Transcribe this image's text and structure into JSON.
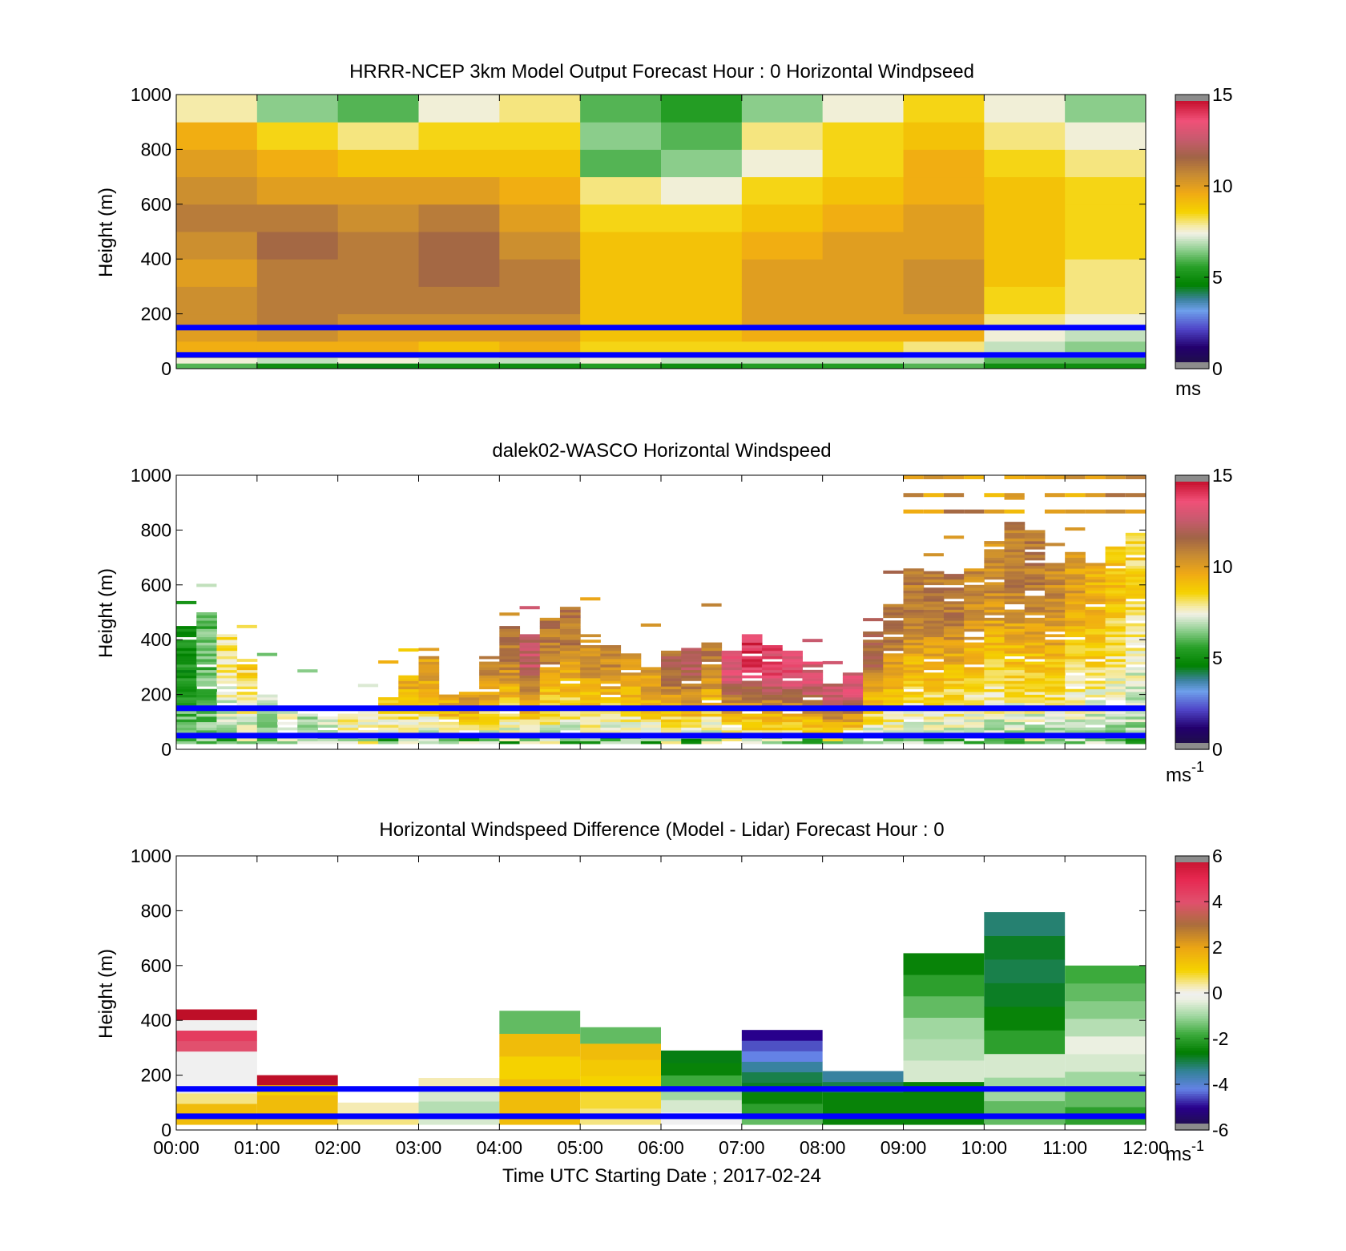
{
  "panels": [
    {
      "id": "model",
      "title": "HRRR-NCEP 3km Model Output   Forecast Hour : 0 Horizontal Windpseed",
      "ylabel": "Height (m)",
      "colorbar_unit": "ms",
      "colorbar_unit_sup": ""
    },
    {
      "id": "lidar",
      "title": "dalek02-WASCO  Horizontal Windspeed",
      "ylabel": "Height (m)",
      "colorbar_unit": "ms",
      "colorbar_unit_sup": "-1"
    },
    {
      "id": "diff",
      "title": "Horizontal Windspeed Difference (Model - Lidar) Forecast Hour : 0",
      "ylabel": "Height (m)",
      "colorbar_unit": "ms",
      "colorbar_unit_sup": "-1"
    }
  ],
  "xlabel": "Time UTC  Starting Date ; 2017-02-24",
  "chart_data": [
    {
      "type": "heatmap",
      "title": "HRRR-NCEP 3km Model Output   Forecast Hour : 0 Horizontal Windpseed",
      "ylabel": "Height (m)",
      "ylim": [
        0,
        1000
      ],
      "yticks": [
        0,
        200,
        400,
        600,
        800,
        1000
      ],
      "xlim": [
        "00:00",
        "12:00"
      ],
      "colorbar": {
        "range": [
          0,
          15
        ],
        "ticks": [
          0,
          5,
          10,
          15
        ],
        "unit": "ms"
      },
      "x_bins": [
        "00:00",
        "01:00",
        "02:00",
        "03:00",
        "04:00",
        "05:00",
        "06:00",
        "07:00",
        "08:00",
        "09:00",
        "10:00",
        "11:00"
      ],
      "height_bins_m": [
        0,
        20,
        40,
        60,
        100,
        150,
        200,
        300,
        400,
        500,
        600,
        700,
        800,
        900,
        1000
      ],
      "windspeed_ms": [
        [
          6.0,
          7.5,
          8.5,
          9.5,
          10.0,
          10.5,
          10.5,
          10.0,
          10.5,
          11.0,
          10.5,
          10.0,
          9.5,
          7.8
        ],
        [
          5.0,
          7.0,
          8.5,
          9.5,
          10.5,
          11.0,
          11.0,
          11.0,
          11.5,
          11.0,
          10.0,
          9.5,
          8.5,
          6.5
        ],
        [
          4.5,
          7.5,
          8.5,
          9.5,
          10.0,
          10.5,
          11.0,
          11.0,
          11.0,
          10.5,
          10.0,
          9.0,
          8.0,
          6.0
        ],
        [
          5.0,
          7.0,
          8.0,
          9.0,
          10.0,
          10.5,
          11.0,
          11.5,
          11.5,
          11.0,
          10.0,
          9.0,
          8.5,
          7.5
        ],
        [
          5.0,
          7.0,
          8.5,
          9.5,
          10.0,
          10.5,
          11.0,
          11.0,
          10.5,
          10.0,
          9.5,
          9.0,
          8.5,
          8.0
        ],
        [
          5.5,
          7.5,
          8.0,
          8.5,
          9.0,
          9.0,
          9.0,
          9.0,
          9.0,
          8.5,
          8.0,
          6.0,
          6.5,
          6.0
        ],
        [
          5.0,
          7.0,
          8.0,
          8.5,
          9.0,
          9.0,
          9.0,
          9.0,
          9.0,
          8.5,
          7.5,
          6.5,
          6.0,
          5.5
        ],
        [
          5.5,
          7.0,
          8.0,
          8.5,
          9.5,
          10.0,
          10.0,
          10.0,
          9.5,
          9.0,
          8.5,
          7.5,
          8.0,
          6.5
        ],
        [
          5.5,
          7.0,
          8.0,
          8.5,
          9.5,
          10.0,
          10.0,
          10.0,
          10.0,
          9.5,
          9.0,
          8.5,
          8.5,
          7.5
        ],
        [
          6.0,
          7.0,
          7.5,
          8.0,
          9.5,
          10.0,
          10.5,
          10.5,
          10.0,
          10.0,
          9.5,
          9.5,
          9.0,
          8.5
        ],
        [
          5.0,
          6.0,
          6.5,
          7.0,
          7.5,
          8.0,
          8.5,
          9.0,
          9.0,
          9.0,
          9.0,
          8.5,
          8.0,
          7.5
        ],
        [
          5.0,
          6.0,
          6.5,
          6.5,
          7.0,
          7.5,
          8.0,
          8.0,
          8.5,
          8.5,
          8.5,
          8.0,
          7.5,
          6.5
        ]
      ]
    },
    {
      "type": "heatmap",
      "title": "dalek02-WASCO  Horizontal Windspeed",
      "ylabel": "Height (m)",
      "ylim": [
        0,
        1000
      ],
      "yticks": [
        0,
        200,
        400,
        600,
        800,
        1000
      ],
      "xlim": [
        "00:00",
        "12:00"
      ],
      "colorbar": {
        "range": [
          0,
          15
        ],
        "ticks": [
          0,
          5,
          10,
          15
        ],
        "unit": "ms-1"
      },
      "x_bins": [
        "00:00",
        "00:15",
        "00:30",
        "00:45",
        "01:00",
        "01:15",
        "01:30",
        "01:45",
        "02:00",
        "02:15",
        "02:30",
        "02:45",
        "03:00",
        "03:15",
        "03:30",
        "03:45",
        "04:00",
        "04:15",
        "04:30",
        "04:45",
        "05:00",
        "05:15",
        "05:30",
        "05:45",
        "06:00",
        "06:15",
        "06:30",
        "06:45",
        "07:00",
        "07:15",
        "07:30",
        "07:45",
        "08:00",
        "08:15",
        "08:30",
        "08:45",
        "09:00",
        "09:15",
        "09:30",
        "09:45",
        "10:00",
        "10:15",
        "10:30",
        "10:45",
        "11:00",
        "11:15",
        "11:30",
        "11:45"
      ],
      "profile_top_m": [
        450,
        500,
        420,
        330,
        200,
        140,
        130,
        130,
        150,
        150,
        200,
        270,
        370,
        200,
        210,
        340,
        450,
        420,
        480,
        520,
        420,
        380,
        350,
        300,
        360,
        370,
        400,
        360,
        420,
        380,
        360,
        320,
        240,
        280,
        430,
        530,
        660,
        650,
        640,
        660,
        760,
        830,
        800,
        680,
        720,
        680,
        740,
        790
      ],
      "profile_peak_ms": [
        5.0,
        6.0,
        8.0,
        8.5,
        7.0,
        7.5,
        7.0,
        7.5,
        8.0,
        8.0,
        8.5,
        9.5,
        10.0,
        9.5,
        10.0,
        10.5,
        11.0,
        12.5,
        11.0,
        11.0,
        10.5,
        10.5,
        10.0,
        10.0,
        11.5,
        12.0,
        11.0,
        13.0,
        14.0,
        13.5,
        13.5,
        13.0,
        12.5,
        13.0,
        11.5,
        11.0,
        11.0,
        11.0,
        11.0,
        10.5,
        10.5,
        11.0,
        11.0,
        10.5,
        10.0,
        9.5,
        9.0,
        8.5
      ]
    },
    {
      "type": "heatmap",
      "title": "Horizontal Windspeed Difference (Model - Lidar) Forecast Hour : 0",
      "ylabel": "Height (m)",
      "xlabel": "Time UTC  Starting Date ; 2017-02-24",
      "ylim": [
        0,
        1000
      ],
      "yticks": [
        0,
        200,
        400,
        600,
        800,
        1000
      ],
      "xticks": [
        "00:00",
        "01:00",
        "02:00",
        "03:00",
        "04:00",
        "05:00",
        "06:00",
        "07:00",
        "08:00",
        "09:00",
        "10:00",
        "11:00",
        "12:00"
      ],
      "colorbar": {
        "range": [
          -6,
          6
        ],
        "ticks": [
          -6,
          -4,
          -2,
          0,
          2,
          4,
          6
        ],
        "unit": "ms-1"
      },
      "x_bins": [
        "00:00",
        "01:00",
        "02:00",
        "03:00",
        "04:00",
        "05:00",
        "06:00",
        "07:00",
        "08:00",
        "09:00",
        "10:00",
        "11:00"
      ],
      "cells": [
        {
          "hour": 0,
          "bottom": 20,
          "top": 440,
          "values_low_to_high": [
            1.5,
            1.5,
            0.5,
            0.0,
            0.0,
            0.0,
            0.0,
            4.0,
            4.5,
            0.0,
            6.0
          ]
        },
        {
          "hour": 1,
          "bottom": 20,
          "top": 200,
          "values_low_to_high": [
            1.5,
            1.5,
            1.5,
            1.0,
            6.0
          ]
        },
        {
          "hour": 2,
          "bottom": 20,
          "top": 100,
          "values_low_to_high": [
            0.5,
            0.3,
            0.3
          ]
        },
        {
          "hour": 3,
          "bottom": 20,
          "top": 190,
          "values_low_to_high": [
            -0.5,
            -0.8,
            -0.5,
            0.3
          ]
        },
        {
          "hour": 4,
          "bottom": 20,
          "top": 435,
          "values_low_to_high": [
            1.5,
            1.5,
            1.0,
            1.5,
            -1.5
          ]
        },
        {
          "hour": 5,
          "bottom": 20,
          "top": 375,
          "values_low_to_high": [
            0.5,
            0.8,
            1.0,
            1.2,
            1.5,
            -1.5
          ]
        },
        {
          "hour": 6,
          "bottom": 20,
          "top": 290,
          "values_low_to_high": [
            0.0,
            -0.5,
            -1.0,
            -1.8,
            -2.5,
            -2.7
          ]
        },
        {
          "hour": 7,
          "bottom": 20,
          "top": 365,
          "values_low_to_high": [
            -1.5,
            -2.0,
            -2.5,
            -2.8,
            -3.0,
            -3.5,
            -4.2,
            -4.5,
            -5.0
          ]
        },
        {
          "hour": 8,
          "bottom": 20,
          "top": 215,
          "values_low_to_high": [
            -2.5,
            -2.5,
            -2.5,
            -3.0,
            -3.5
          ]
        },
        {
          "hour": 9,
          "bottom": 20,
          "top": 645,
          "values_low_to_high": [
            -2.5,
            -2.5,
            -0.5,
            -0.8,
            -1.0,
            -1.5,
            -2.0,
            -2.5
          ]
        },
        {
          "hour": 10,
          "bottom": 20,
          "top": 795,
          "values_low_to_high": [
            -1.5,
            -1.0,
            -0.5,
            -2.0,
            -2.5,
            -2.8,
            -3.0,
            -2.8,
            -3.2
          ]
        },
        {
          "hour": 11,
          "bottom": 20,
          "top": 600,
          "values_low_to_high": [
            -2.0,
            -1.5,
            -1.0,
            -0.5,
            -0.3,
            -0.8,
            -1.2,
            -1.5,
            -1.8
          ]
        }
      ]
    }
  ],
  "reference_lines_m": [
    50,
    150
  ],
  "reference_line_color": "#0000ff"
}
